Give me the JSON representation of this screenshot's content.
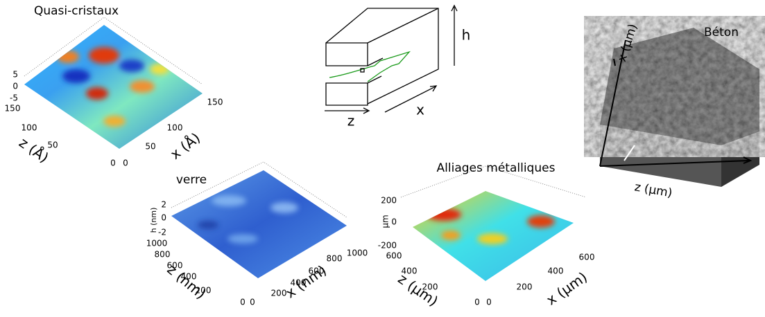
{
  "quasi": {
    "title": "Quasi-cristaux",
    "h_ticks": [
      "5",
      "0",
      "-5"
    ],
    "z_ticks": [
      "150",
      "100",
      "50",
      "0"
    ],
    "x_ticks": [
      "0",
      "50",
      "100",
      "150"
    ],
    "z_label": "z (Å)",
    "x_label": "x (Å)"
  },
  "schema": {
    "h": "h",
    "z": "z",
    "x": "x"
  },
  "beton": {
    "title": "Béton",
    "x_label": "x (µm)",
    "z_label": "z (µm)"
  },
  "verre": {
    "title": "verre",
    "h_label": "h (nm)",
    "h_ticks": [
      "2",
      "0",
      "-2"
    ],
    "z_ticks": [
      "1000",
      "800",
      "600",
      "400",
      "200",
      "0"
    ],
    "x_ticks": [
      "0",
      "200",
      "400",
      "600",
      "800",
      "1000"
    ],
    "z_label": "z (nm)",
    "x_label": "x (nm)"
  },
  "alliages": {
    "title": "Alliages métalliques",
    "h_label": "µm",
    "h_ticks": [
      "200",
      "0",
      "-200"
    ],
    "z_ticks": [
      "600",
      "400",
      "200",
      "0"
    ],
    "x_ticks": [
      "0",
      "200",
      "400",
      "600"
    ],
    "z_label": "z (µm)",
    "x_label": "x (µm)"
  }
}
